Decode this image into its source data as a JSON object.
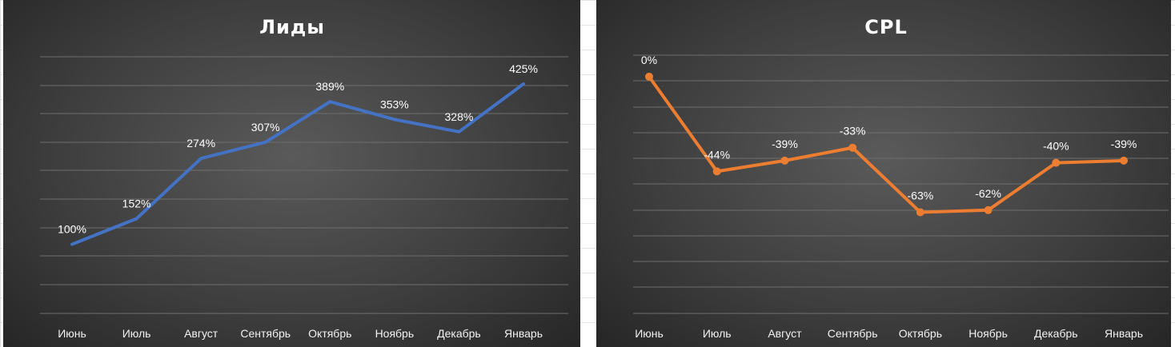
{
  "chart_data": [
    {
      "type": "line",
      "title": "Лиды",
      "categories": [
        "Июнь",
        "Июль",
        "Август",
        "Сентябрь",
        "Октябрь",
        "Ноябрь",
        "Декабрь",
        "Январь"
      ],
      "series": [
        {
          "values": [
            100,
            152,
            274,
            307,
            389,
            353,
            328,
            425
          ],
          "color": "#4472C4"
        }
      ],
      "data_labels": [
        "100%",
        "152%",
        "274%",
        "307%",
        "389%",
        "353%",
        "328%",
        "425%"
      ],
      "unit": "%",
      "markers": false,
      "ylim": [
        -40,
        480
      ],
      "grid": true,
      "background": "#3f3f3f"
    },
    {
      "type": "line",
      "title": "CPL",
      "categories": [
        "Июнь",
        "Июль",
        "Август",
        "Сентябрь",
        "Октябрь",
        "Ноябрь",
        "Декабрь",
        "Январь"
      ],
      "series": [
        {
          "values": [
            0,
            -44,
            -39,
            -33,
            -63,
            -62,
            -40,
            -39
          ],
          "color": "#ED7D31"
        }
      ],
      "data_labels": [
        "0%",
        "-44%",
        "-39%",
        "-33%",
        "-63%",
        "-62%",
        "-40%",
        "-39%"
      ],
      "unit": "%",
      "markers": true,
      "ylim": [
        -110,
        10
      ],
      "grid": true,
      "background": "#3f3f3f"
    }
  ]
}
